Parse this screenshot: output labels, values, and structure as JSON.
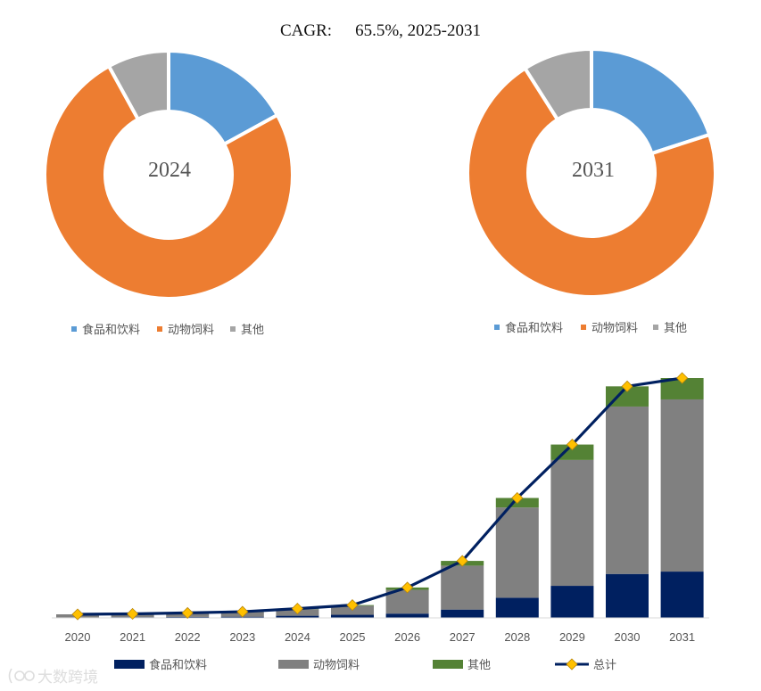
{
  "header": {
    "cagr_label": "CAGR:",
    "cagr_value": "65.5%, 2025-2031"
  },
  "watermark": {
    "text": "大数跨境"
  },
  "colors": {
    "food": "#5b9bd5",
    "feed": "#ed7d31",
    "other_pie": "#a5a5a5",
    "bar_food": "#002060",
    "bar_feed": "#808080",
    "bar_other": "#548235",
    "line": "#002060",
    "marker": "#ffc000"
  },
  "chart_data": [
    {
      "type": "pie",
      "subtype": "donut",
      "center_label": "2024",
      "categories": [
        "食品和饮料",
        "动物饲料",
        "其他"
      ],
      "values": [
        17,
        75,
        8
      ],
      "legend": [
        "食品和饮料",
        "动物饲料",
        "其他"
      ]
    },
    {
      "type": "pie",
      "subtype": "donut",
      "center_label": "2031",
      "categories": [
        "食品和饮料",
        "动物饲料",
        "其他"
      ],
      "values": [
        20,
        71,
        9
      ],
      "legend": [
        "食品和饮料",
        "动物饲料",
        "其他"
      ]
    },
    {
      "type": "bar",
      "stacked": true,
      "categories": [
        "2020",
        "2021",
        "2022",
        "2023",
        "2024",
        "2025",
        "2026",
        "2027",
        "2028",
        "2029",
        "2030",
        "2031"
      ],
      "series": [
        {
          "name": "食品和饮料",
          "values": [
            0.2,
            0.3,
            0.4,
            0.5,
            0.9,
            1.3,
            1.8,
            3.5,
            8.5,
            13.5,
            18.5,
            19.5
          ]
        },
        {
          "name": "动物饲料",
          "values": [
            1.3,
            1.4,
            1.6,
            2.0,
            2.8,
            3.8,
            10.0,
            18.5,
            38.0,
            53.0,
            70.5,
            72.5
          ]
        },
        {
          "name": "其他",
          "values": [
            0.0,
            0.0,
            0.1,
            0.1,
            0.2,
            0.3,
            1.0,
            2.0,
            4.0,
            6.5,
            8.5,
            9.0
          ]
        }
      ],
      "line": {
        "name": "总计",
        "values": [
          1.5,
          1.7,
          2.1,
          2.6,
          3.9,
          5.4,
          12.8,
          24.0,
          50.5,
          73.0,
          97.5,
          101.0
        ]
      },
      "legend": [
        "食品和饮料",
        "动物饲料",
        "其他",
        "总计"
      ],
      "ylim": [
        0,
        101
      ],
      "grid": false
    }
  ]
}
